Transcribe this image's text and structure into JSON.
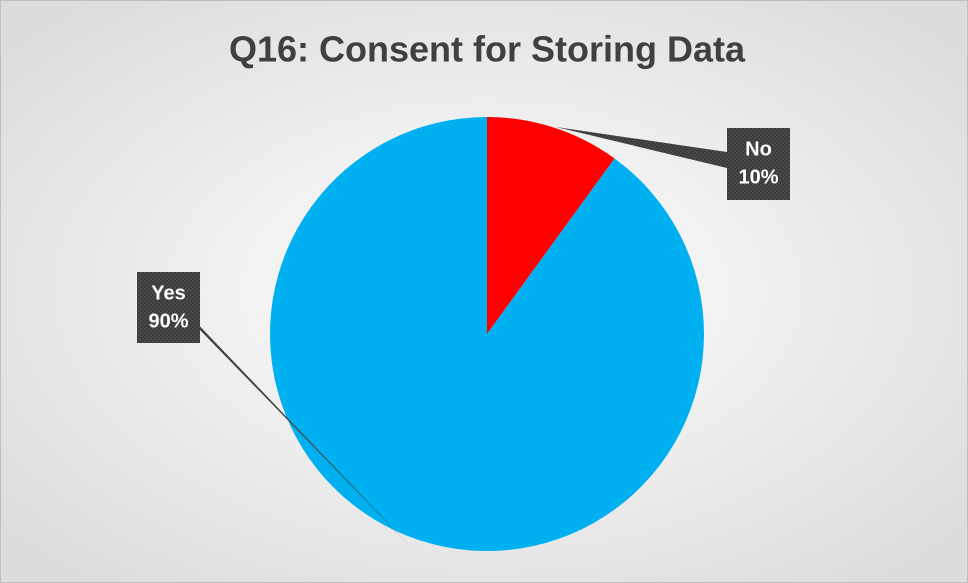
{
  "chart_data": {
    "type": "pie",
    "title": "Q16: Consent for Storing Data",
    "categories": [
      "No",
      "Yes"
    ],
    "values": [
      10,
      90
    ],
    "value_labels": [
      "10%",
      "90%"
    ],
    "colors": [
      "#ff0000",
      "#00b0f0"
    ]
  }
}
